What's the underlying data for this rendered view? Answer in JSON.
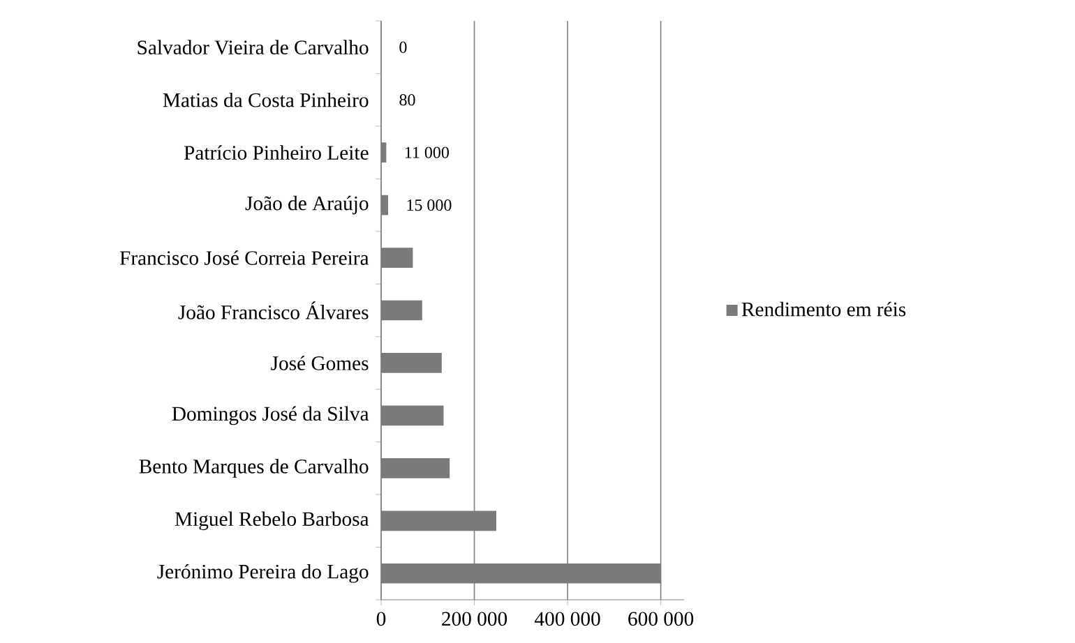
{
  "chart_data": {
    "type": "bar",
    "orientation": "horizontal",
    "categories": [
      "Salvador Vieira de Carvalho",
      "Matias da Costa Pinheiro",
      "Patrício Pinheiro Leite",
      "João de Araújo",
      "Francisco José Correia Pereira",
      "João Francisco Álvares",
      "José Gomes",
      "Domingos José da Silva",
      "Bento Marques de Carvalho",
      "Miguel Rebelo Barbosa",
      "Jerónimo Pereira do Lago"
    ],
    "series": [
      {
        "name": "Rendimento em réis",
        "color": "#7a7a7a",
        "values": [
          0,
          80,
          11000,
          15000,
          68000,
          88000,
          130000,
          134000,
          147000,
          247000,
          600000
        ],
        "value_labels": [
          "0",
          "80",
          "11 000",
          "15 000",
          null,
          null,
          null,
          null,
          null,
          null,
          null
        ]
      }
    ],
    "xlim": [
      0,
      650000
    ],
    "xticks": [
      0,
      {
        "value": 200000,
        "label": "200 000"
      },
      {
        "value": 400000,
        "label": "400 000"
      },
      {
        "value": 600000,
        "label": "600 000"
      }
    ],
    "grid": "x",
    "legend": "right"
  }
}
